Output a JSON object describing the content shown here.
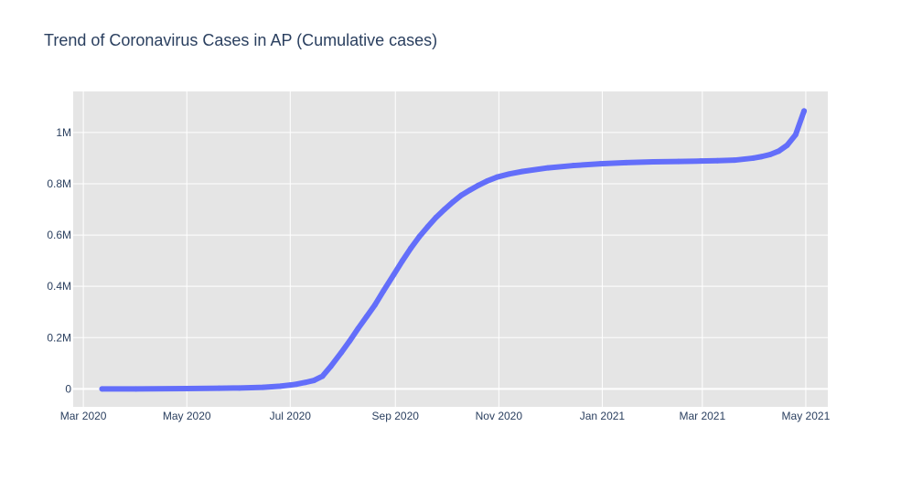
{
  "chart_data": {
    "type": "scatter",
    "mode": "lines+markers",
    "title": "Trend of Coronavirus Cases in AP (Cumulative cases)",
    "xlabel": "",
    "ylabel": "",
    "x_type": "date",
    "xlim": [
      "2020-02-24",
      "2021-05-14"
    ],
    "ylim": [
      -70000,
      1160000
    ],
    "grid": true,
    "plot_background": "#e5e5e5",
    "series_color": "#636efa",
    "x_ticks": [
      {
        "value": "2020-03-01",
        "label": "Mar 2020"
      },
      {
        "value": "2020-05-01",
        "label": "May 2020"
      },
      {
        "value": "2020-07-01",
        "label": "Jul 2020"
      },
      {
        "value": "2020-09-01",
        "label": "Sep 2020"
      },
      {
        "value": "2020-11-01",
        "label": "Nov 2020"
      },
      {
        "value": "2021-01-01",
        "label": "Jan 2021"
      },
      {
        "value": "2021-03-01",
        "label": "Mar 2021"
      },
      {
        "value": "2021-05-01",
        "label": "May 2021"
      }
    ],
    "y_ticks": [
      {
        "value": 0,
        "label": "0"
      },
      {
        "value": 200000,
        "label": "0.2M"
      },
      {
        "value": 400000,
        "label": "0.4M"
      },
      {
        "value": 600000,
        "label": "0.6M"
      },
      {
        "value": 800000,
        "label": "0.8M"
      },
      {
        "value": 1000000,
        "label": "1M"
      }
    ],
    "series": [
      {
        "x": [
          "2020-03-12",
          "2020-04-01",
          "2020-05-01",
          "2020-05-20",
          "2020-06-01",
          "2020-06-15",
          "2020-06-25",
          "2020-07-01",
          "2020-07-05",
          "2020-07-10",
          "2020-07-15",
          "2020-07-20",
          "2020-07-25",
          "2020-07-31",
          "2020-08-05",
          "2020-08-10",
          "2020-08-15",
          "2020-08-20",
          "2020-08-25",
          "2020-08-31",
          "2020-09-05",
          "2020-09-10",
          "2020-09-15",
          "2020-09-20",
          "2020-09-25",
          "2020-09-30",
          "2020-10-05",
          "2020-10-10",
          "2020-10-15",
          "2020-10-20",
          "2020-10-25",
          "2020-10-31",
          "2020-11-07",
          "2020-11-15",
          "2020-11-30",
          "2020-12-15",
          "2020-12-31",
          "2021-01-15",
          "2021-01-31",
          "2021-02-15",
          "2021-02-28",
          "2021-03-10",
          "2021-03-20",
          "2021-03-31",
          "2021-04-05",
          "2021-04-10",
          "2021-04-15",
          "2021-04-20",
          "2021-04-25",
          "2021-04-30"
        ],
        "y": [
          1,
          130,
          1500,
          2600,
          3700,
          6200,
          10800,
          15000,
          18700,
          25400,
          33100,
          49600,
          88700,
          140900,
          186500,
          235500,
          281800,
          328000,
          382400,
          445100,
          498100,
          547700,
          592800,
          631700,
          668800,
          700200,
          729300,
          755700,
          775500,
          794000,
          810300,
          826000,
          838000,
          848000,
          862000,
          871000,
          878000,
          882500,
          885500,
          887000,
          888500,
          890000,
          892000,
          900000,
          906000,
          914000,
          927000,
          950000,
          991000,
          1084000
        ]
      }
    ]
  }
}
